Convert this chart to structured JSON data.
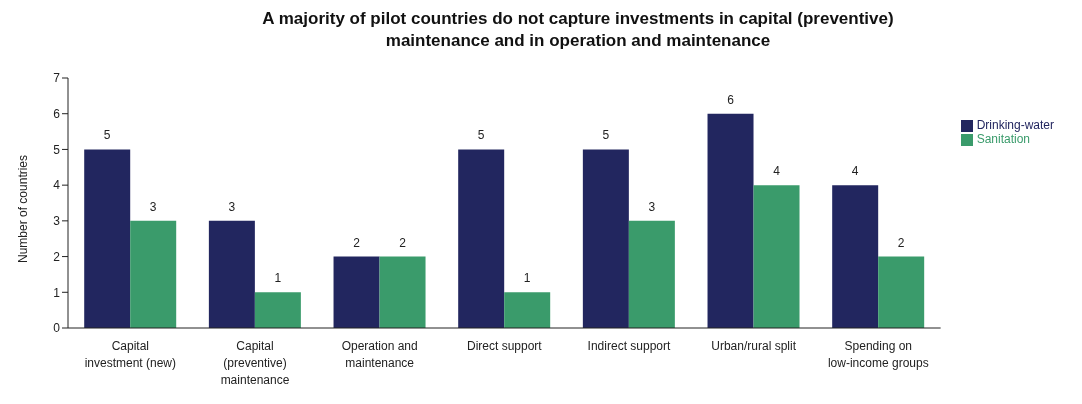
{
  "chart_data": {
    "type": "bar",
    "title": "A majority of pilot countries do not capture investments in capital (preventive) maintenance and in operation and maintenance",
    "ylabel": "Number of countries",
    "categories": [
      "Capital investment (new)",
      "Capital (preventive) maintenance",
      "Operation and maintenance",
      "Direct support",
      "Indirect support",
      "Urban/rural split",
      "Spending on low-income groups"
    ],
    "series": [
      {
        "name": "Drinking-water",
        "color": "#22265f",
        "values": [
          5,
          3,
          2,
          5,
          5,
          6,
          4
        ]
      },
      {
        "name": "Sanitation",
        "color": "#3a9b6b",
        "values": [
          3,
          1,
          2,
          1,
          3,
          4,
          2
        ]
      }
    ],
    "ylim": [
      0,
      7
    ],
    "yticks": [
      0,
      1,
      2,
      3,
      4,
      5,
      6,
      7
    ],
    "grid": false,
    "legend": "right",
    "data_labels": true
  }
}
